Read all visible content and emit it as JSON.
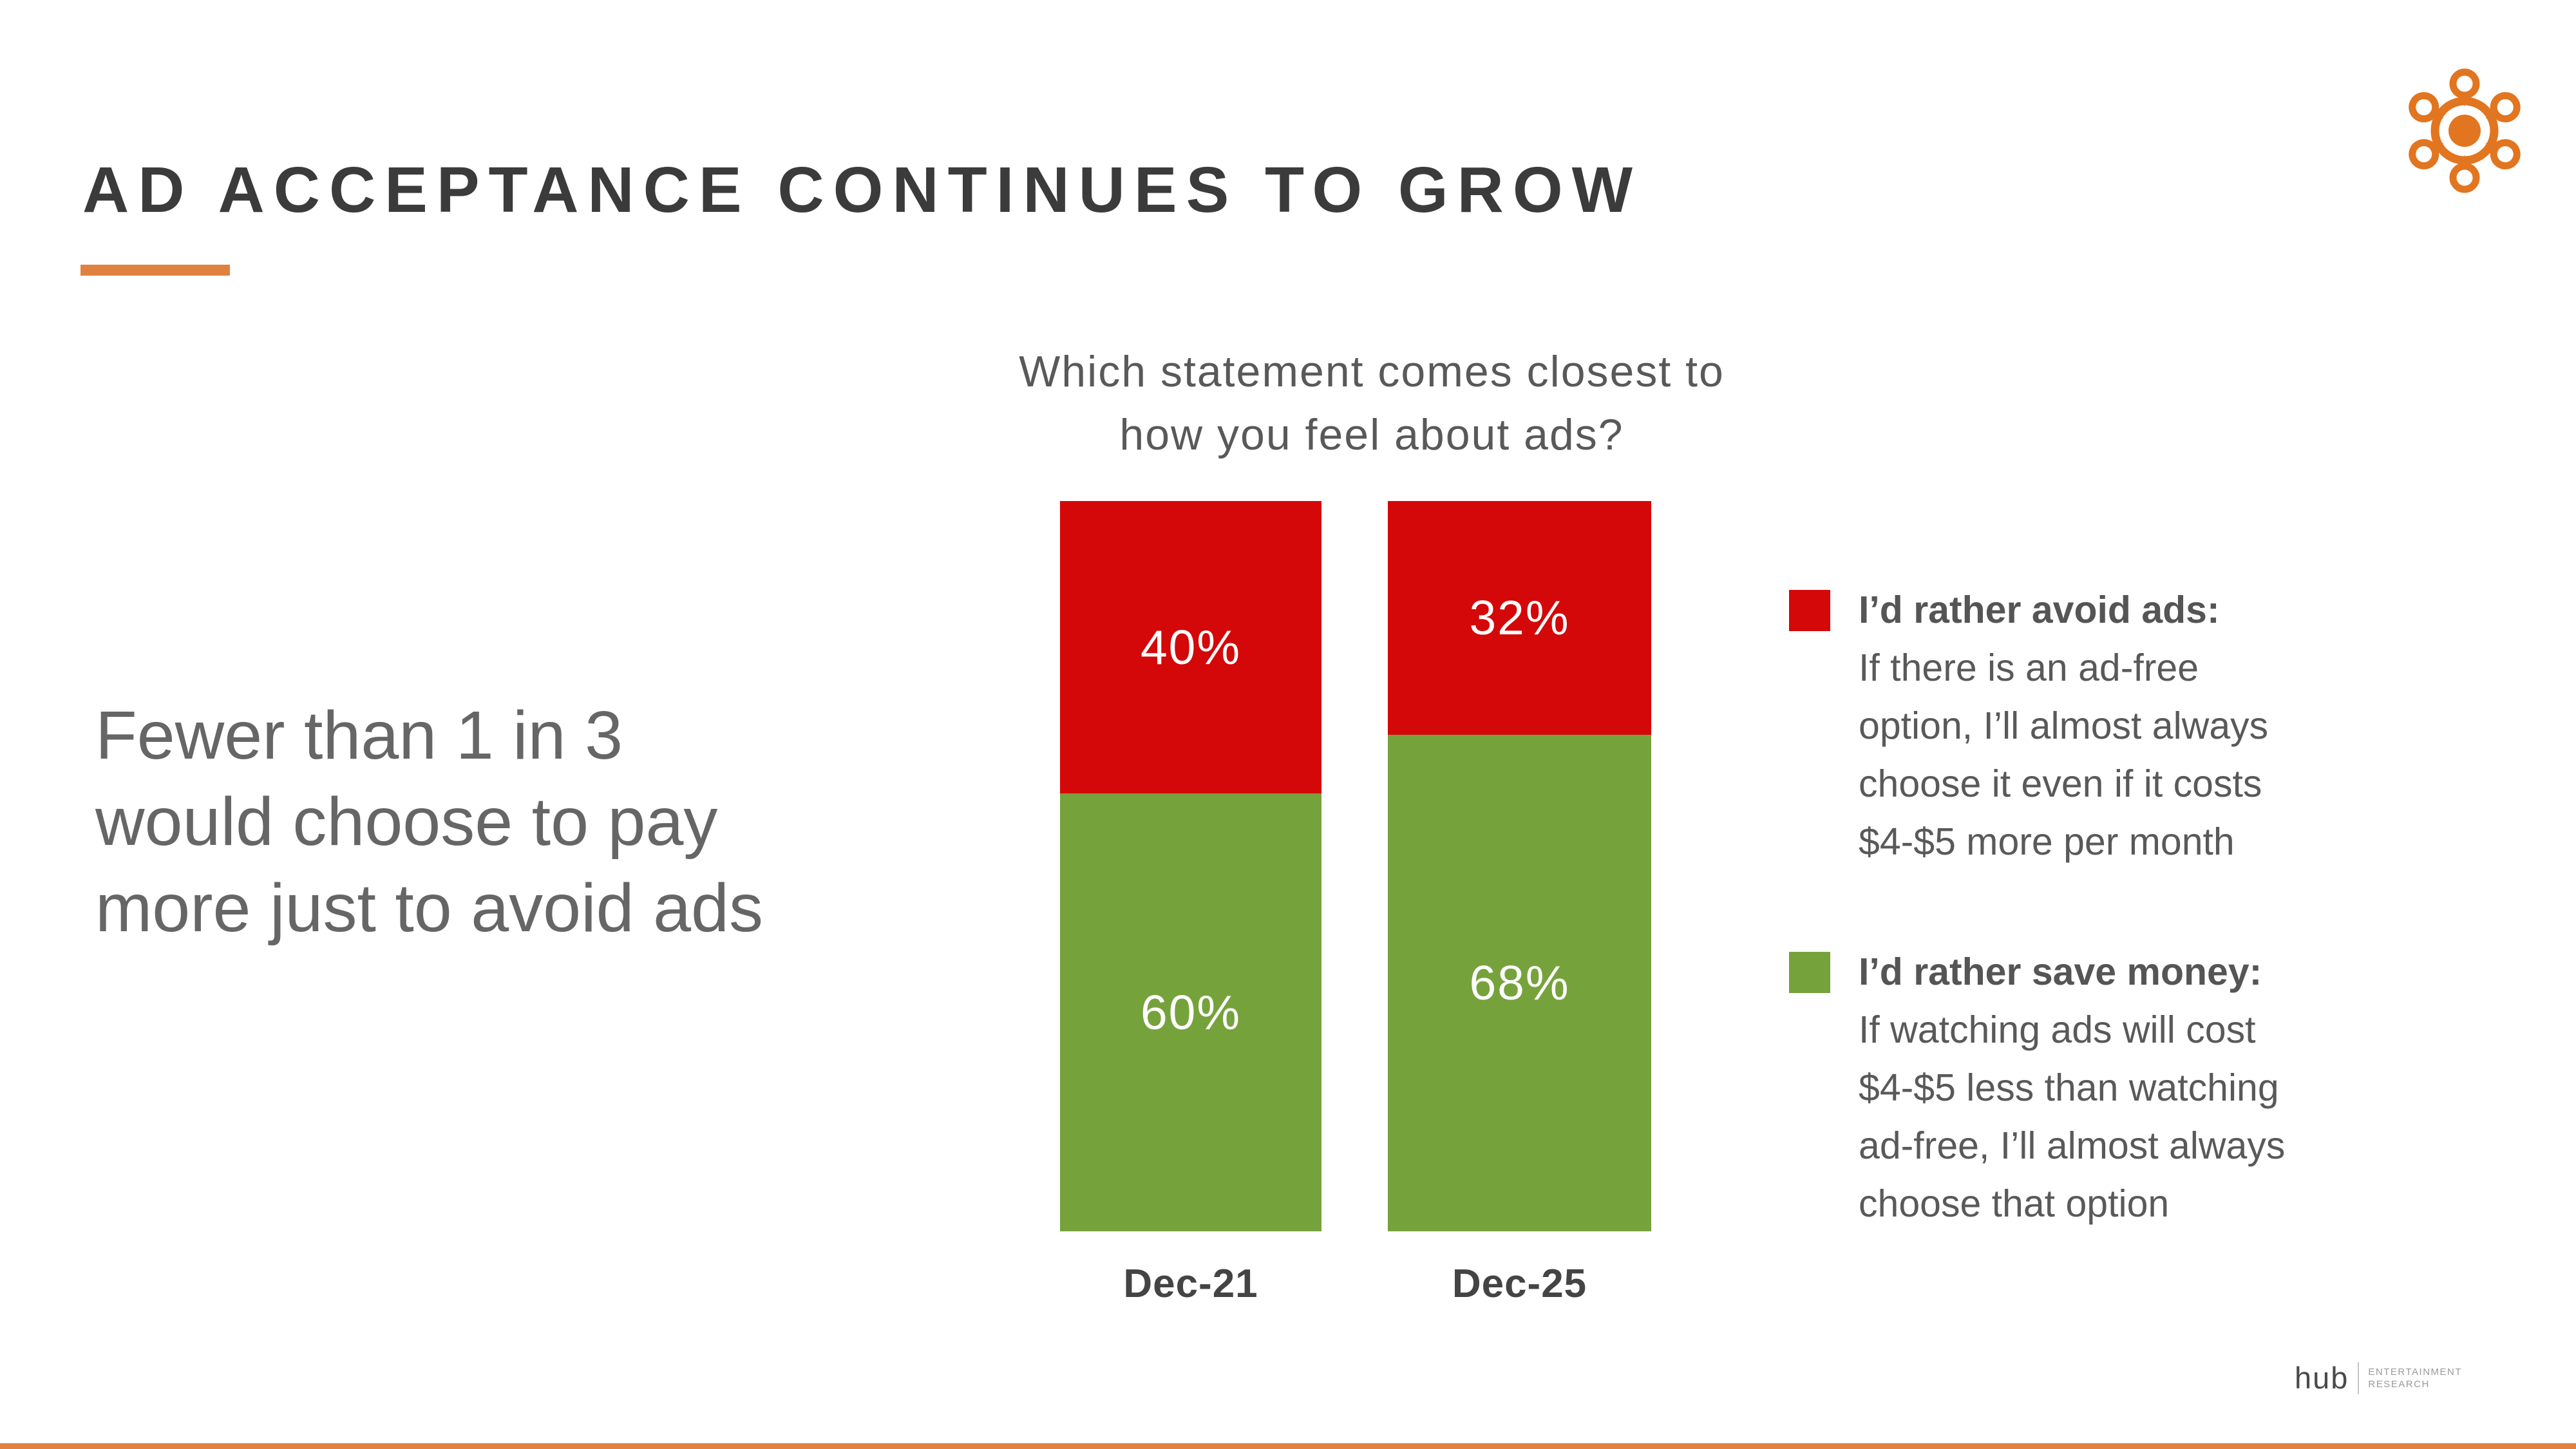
{
  "header": {
    "title": "AD ACCEPTANCE CONTINUES TO GROW"
  },
  "statement": {
    "lines": [
      "Fewer than 1 in 3",
      "would choose to pay",
      "more just to avoid ads"
    ]
  },
  "chart_data": {
    "type": "bar",
    "stacked": true,
    "title": "Which statement comes closest to how you feel about ads?",
    "title_lines": [
      "Which statement comes closest to",
      "how you feel about ads?"
    ],
    "categories": [
      "Dec-21",
      "Dec-25"
    ],
    "series": [
      {
        "name": "I’d rather avoid ads",
        "color": "#D40808",
        "values": [
          40,
          32
        ],
        "labels": [
          "40%",
          "32%"
        ]
      },
      {
        "name": "I’d rather save money",
        "color": "#76A23C",
        "values": [
          60,
          68
        ],
        "labels": [
          "60%",
          "68%"
        ]
      }
    ],
    "ylim": [
      0,
      100
    ],
    "grid": false,
    "value_label_color": "#FFFFFF",
    "legend_position": "right"
  },
  "legend": {
    "items": [
      {
        "swatch_color": "#D40808",
        "title": "I’d rather avoid ads:",
        "lines": [
          "If there is an ad-free",
          "option, I’ll almost always",
          "choose it even if it costs",
          "$4-$5 more per month"
        ]
      },
      {
        "swatch_color": "#76A23C",
        "title": "I’d rather save money:",
        "lines": [
          "If watching ads will cost",
          "$4-$5 less than watching",
          "ad-free, I’ll almost always",
          "choose that option"
        ]
      }
    ]
  },
  "footer": {
    "logo_text": "hub",
    "logo_caption_line1": "ENTERTAINMENT",
    "logo_caption_line2": "RESEARCH"
  },
  "colors": {
    "accent_orange": "#E0813F",
    "logo_orange": "#E2751F",
    "bottom_bar": "#E0813F",
    "red": "#D40808",
    "green": "#76A23C"
  }
}
